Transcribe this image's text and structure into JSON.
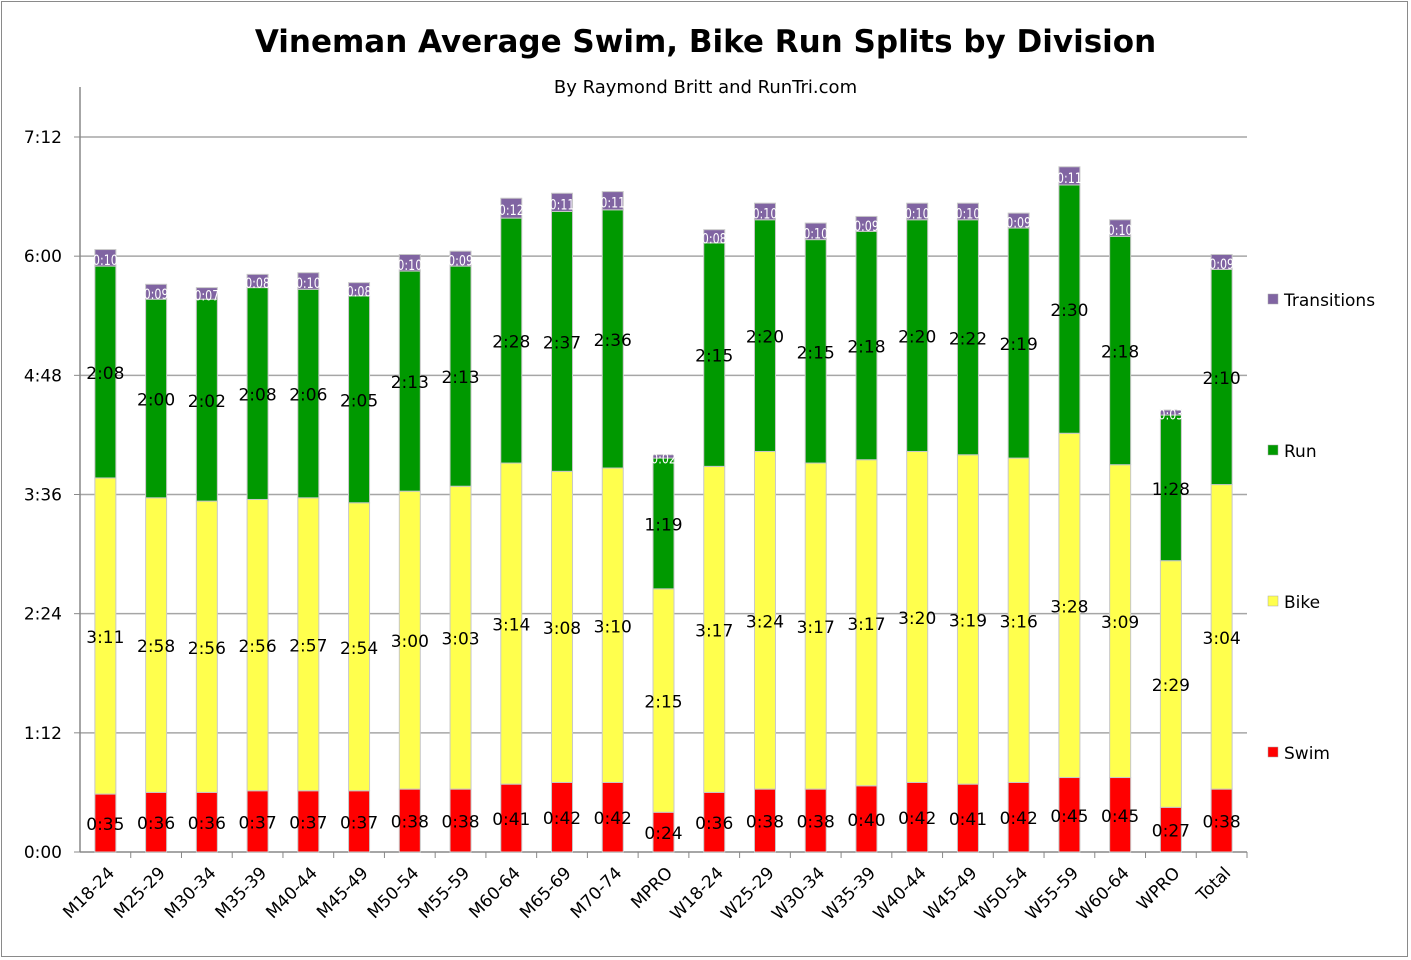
{
  "chart_data": {
    "type": "bar",
    "stacked": true,
    "title": "Vineman Average Swim, Bike Run Splits by Division",
    "subtitle": "By Raymond Britt and RunTri.com",
    "xlabel": "",
    "ylabel": "",
    "ylim_minutes": [
      0,
      432
    ],
    "yticks": [
      "0:00",
      "1:12",
      "2:24",
      "3:36",
      "4:48",
      "6:00",
      "7:12"
    ],
    "grid": true,
    "legend_position": "right",
    "categories": [
      "M18-24",
      "M25-29",
      "M30-34",
      "M35-39",
      "M40-44",
      "M45-49",
      "M50-54",
      "M55-59",
      "M60-64",
      "M65-69",
      "M70-74",
      "MPRO",
      "W18-24",
      "W25-29",
      "W30-34",
      "W35-39",
      "W40-44",
      "W45-49",
      "W50-54",
      "W55-59",
      "W60-64",
      "WPRO",
      "Total"
    ],
    "series": [
      {
        "name": "Swim",
        "color": "#ff0000",
        "values": [
          "0:35",
          "0:36",
          "0:36",
          "0:37",
          "0:37",
          "0:37",
          "0:38",
          "0:38",
          "0:41",
          "0:42",
          "0:42",
          "0:24",
          "0:36",
          "0:38",
          "0:38",
          "0:40",
          "0:42",
          "0:41",
          "0:42",
          "0:45",
          "0:45",
          "0:27",
          "0:38"
        ]
      },
      {
        "name": "Bike",
        "color": "#ffff4d",
        "values": [
          "3:11",
          "2:58",
          "2:56",
          "2:56",
          "2:57",
          "2:54",
          "3:00",
          "3:03",
          "3:14",
          "3:08",
          "3:10",
          "2:15",
          "3:17",
          "3:24",
          "3:17",
          "3:17",
          "3:20",
          "3:19",
          "3:16",
          "3:28",
          "3:09",
          "2:29",
          "3:04"
        ]
      },
      {
        "name": "Run",
        "color": "#009900",
        "values": [
          "2:08",
          "2:00",
          "2:02",
          "2:08",
          "2:06",
          "2:05",
          "2:13",
          "2:13",
          "2:28",
          "2:37",
          "2:36",
          "1:19",
          "2:15",
          "2:20",
          "2:15",
          "2:18",
          "2:20",
          "2:22",
          "2:19",
          "2:30",
          "2:18",
          "1:28",
          "2:10"
        ]
      },
      {
        "name": "Transitions",
        "color": "#8064a2",
        "values": [
          "0:10",
          "0:09",
          "0:07",
          "0:08",
          "0:10",
          "0:08",
          "0:10",
          "0:09",
          "0:12",
          "0:11",
          "0:11",
          "0:02",
          "0:08",
          "0:10",
          "0:10",
          "0:09",
          "0:10",
          "0:10",
          "0:09",
          "0:11",
          "0:10",
          "0:03",
          "0:09"
        ]
      }
    ]
  }
}
